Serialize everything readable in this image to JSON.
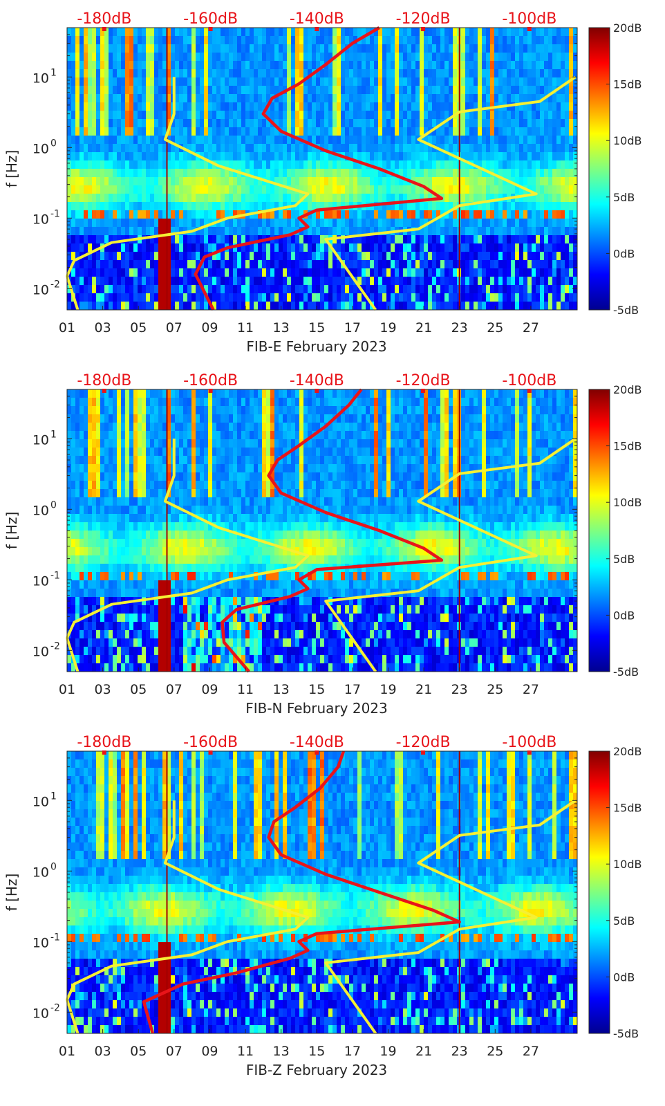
{
  "figure": {
    "description_free": true
  },
  "chart_data": [
    {
      "type": "heatmap",
      "station": "FIB-E",
      "xlabel": "FIB-E February 2023",
      "ylabel": "f [Hz]",
      "x_ticks": [
        "01",
        "03",
        "05",
        "07",
        "09",
        "11",
        "13",
        "15",
        "17",
        "19",
        "21",
        "23",
        "25",
        "27"
      ],
      "x_range_days": [
        1,
        29.6
      ],
      "y_scale": "log",
      "y_range_hz": [
        0.005,
        50
      ],
      "y_ticks": [
        {
          "base": "10",
          "exp": "-2"
        },
        {
          "base": "10",
          "exp": "-1"
        },
        {
          "base": "10",
          "exp": "0"
        },
        {
          "base": "10",
          "exp": "1"
        }
      ],
      "top_axis_labels": [
        "-180dB",
        "-160dB",
        "-140dB",
        "-120dB",
        "-100dB"
      ],
      "top_axis_range_db": [
        -187,
        -91
      ],
      "colorbar": {
        "labels": [
          "20dB",
          "15dB",
          "10dB",
          "5dB",
          "0dB",
          "-5dB"
        ],
        "range_db": [
          -5,
          20
        ]
      },
      "yellow_lines": [
        {
          "points": [
            [
              7.0,
              10.0
            ],
            [
              7.0,
              3.0
            ],
            [
              6.5,
              1.3
            ],
            [
              9.5,
              0.55
            ],
            [
              14.5,
              0.22
            ],
            [
              13.8,
              0.15
            ],
            [
              10.0,
              0.1
            ],
            [
              8.0,
              0.065
            ],
            [
              3.5,
              0.045
            ],
            [
              1.4,
              0.025
            ],
            [
              1.0,
              0.015
            ],
            [
              1.6,
              0.005
            ]
          ]
        },
        {
          "points": [
            [
              29.5,
              10.0
            ],
            [
              27.5,
              4.5
            ],
            [
              23.0,
              3.2
            ],
            [
              20.7,
              1.3
            ],
            [
              27.3,
              0.22
            ],
            [
              23.0,
              0.15
            ],
            [
              20.7,
              0.07
            ],
            [
              15.5,
              0.05
            ],
            [
              18.3,
              0.005
            ]
          ]
        }
      ],
      "red_line": {
        "points": [
          [
            9.2,
            0.005
          ],
          [
            8.2,
            0.016
          ],
          [
            8.7,
            0.028
          ],
          [
            10.0,
            0.038
          ],
          [
            13.5,
            0.058
          ],
          [
            14.5,
            0.075
          ],
          [
            14.0,
            0.1
          ],
          [
            15.0,
            0.13
          ],
          [
            22.0,
            0.19
          ],
          [
            21.0,
            0.28
          ],
          [
            18.5,
            0.5
          ],
          [
            15.5,
            0.9
          ],
          [
            13.0,
            1.7
          ],
          [
            12.0,
            3.0
          ],
          [
            12.5,
            5.0
          ],
          [
            14.0,
            8.0
          ],
          [
            15.5,
            15.0
          ],
          [
            17.0,
            30.0
          ],
          [
            18.5,
            50.0
          ]
        ]
      }
    },
    {
      "type": "heatmap",
      "station": "FIB-N",
      "xlabel": "FIB-N February 2023",
      "ylabel": "f [Hz]",
      "x_ticks": [
        "01",
        "03",
        "05",
        "07",
        "09",
        "11",
        "13",
        "15",
        "17",
        "19",
        "21",
        "23",
        "25",
        "27"
      ],
      "x_range_days": [
        1,
        29.6
      ],
      "y_scale": "log",
      "y_range_hz": [
        0.005,
        50
      ],
      "y_ticks": [
        {
          "base": "10",
          "exp": "-2"
        },
        {
          "base": "10",
          "exp": "-1"
        },
        {
          "base": "10",
          "exp": "0"
        },
        {
          "base": "10",
          "exp": "1"
        }
      ],
      "top_axis_labels": [
        "-180dB",
        "-160dB",
        "-140dB",
        "-120dB",
        "-100dB"
      ],
      "top_axis_range_db": [
        -187,
        -91
      ],
      "colorbar": {
        "labels": [
          "20dB",
          "15dB",
          "10dB",
          "5dB",
          "0dB",
          "-5dB"
        ],
        "range_db": [
          -5,
          20
        ]
      },
      "yellow_lines": [
        {
          "points": [
            [
              7.0,
              10.0
            ],
            [
              7.0,
              3.0
            ],
            [
              6.5,
              1.3
            ],
            [
              9.5,
              0.55
            ],
            [
              14.5,
              0.22
            ],
            [
              13.8,
              0.15
            ],
            [
              10.0,
              0.1
            ],
            [
              8.0,
              0.065
            ],
            [
              3.5,
              0.045
            ],
            [
              1.4,
              0.025
            ],
            [
              1.0,
              0.015
            ],
            [
              1.6,
              0.005
            ]
          ]
        },
        {
          "points": [
            [
              29.5,
              10.0
            ],
            [
              27.5,
              4.5
            ],
            [
              23.0,
              3.2
            ],
            [
              20.7,
              1.3
            ],
            [
              27.3,
              0.22
            ],
            [
              23.0,
              0.15
            ],
            [
              20.7,
              0.07
            ],
            [
              15.5,
              0.05
            ],
            [
              18.3,
              0.005
            ]
          ]
        }
      ],
      "red_line": {
        "points": [
          [
            11.2,
            0.005
          ],
          [
            9.8,
            0.013
          ],
          [
            9.7,
            0.025
          ],
          [
            10.5,
            0.038
          ],
          [
            13.5,
            0.058
          ],
          [
            14.5,
            0.075
          ],
          [
            14.0,
            0.1
          ],
          [
            15.0,
            0.14
          ],
          [
            22.0,
            0.19
          ],
          [
            21.0,
            0.28
          ],
          [
            18.5,
            0.5
          ],
          [
            15.5,
            0.9
          ],
          [
            13.0,
            1.7
          ],
          [
            12.3,
            3.0
          ],
          [
            12.8,
            5.0
          ],
          [
            14.0,
            8.0
          ],
          [
            15.5,
            15.0
          ],
          [
            16.8,
            30.0
          ],
          [
            17.5,
            50.0
          ]
        ]
      }
    },
    {
      "type": "heatmap",
      "station": "FIB-Z",
      "xlabel": "FIB-Z February 2023",
      "ylabel": "f [Hz]",
      "x_ticks": [
        "01",
        "03",
        "05",
        "07",
        "09",
        "11",
        "13",
        "15",
        "17",
        "19",
        "21",
        "23",
        "25",
        "27"
      ],
      "x_range_days": [
        1,
        29.6
      ],
      "y_scale": "log",
      "y_range_hz": [
        0.005,
        50
      ],
      "y_ticks": [
        {
          "base": "10",
          "exp": "-2"
        },
        {
          "base": "10",
          "exp": "-1"
        },
        {
          "base": "10",
          "exp": "0"
        },
        {
          "base": "10",
          "exp": "1"
        }
      ],
      "top_axis_labels": [
        "-180dB",
        "-160dB",
        "-140dB",
        "-120dB",
        "-100dB"
      ],
      "top_axis_range_db": [
        -187,
        -91
      ],
      "colorbar": {
        "labels": [
          "20dB",
          "15dB",
          "10dB",
          "5dB",
          "0dB",
          "-5dB"
        ],
        "range_db": [
          -5,
          20
        ]
      },
      "yellow_lines": [
        {
          "points": [
            [
              7.0,
              10.0
            ],
            [
              7.0,
              3.0
            ],
            [
              6.5,
              1.3
            ],
            [
              9.5,
              0.55
            ],
            [
              14.5,
              0.22
            ],
            [
              13.8,
              0.15
            ],
            [
              10.0,
              0.1
            ],
            [
              8.0,
              0.065
            ],
            [
              3.5,
              0.045
            ],
            [
              1.4,
              0.025
            ],
            [
              1.0,
              0.015
            ],
            [
              1.6,
              0.005
            ]
          ]
        },
        {
          "points": [
            [
              29.5,
              10.0
            ],
            [
              27.5,
              4.5
            ],
            [
              23.0,
              3.2
            ],
            [
              20.7,
              1.3
            ],
            [
              27.3,
              0.22
            ],
            [
              23.0,
              0.15
            ],
            [
              20.7,
              0.07
            ],
            [
              15.5,
              0.05
            ],
            [
              18.3,
              0.005
            ]
          ]
        }
      ],
      "red_line": {
        "points": [
          [
            5.8,
            0.005
          ],
          [
            5.3,
            0.014
          ],
          [
            7.5,
            0.025
          ],
          [
            10.5,
            0.036
          ],
          [
            13.5,
            0.058
          ],
          [
            14.5,
            0.075
          ],
          [
            14.0,
            0.1
          ],
          [
            15.0,
            0.13
          ],
          [
            23.0,
            0.19
          ],
          [
            21.5,
            0.28
          ],
          [
            18.5,
            0.5
          ],
          [
            15.5,
            0.9
          ],
          [
            13.0,
            1.7
          ],
          [
            12.3,
            3.0
          ],
          [
            12.6,
            5.0
          ],
          [
            13.8,
            8.0
          ],
          [
            15.2,
            15.0
          ],
          [
            16.2,
            30.0
          ],
          [
            16.5,
            50.0
          ]
        ]
      }
    }
  ]
}
